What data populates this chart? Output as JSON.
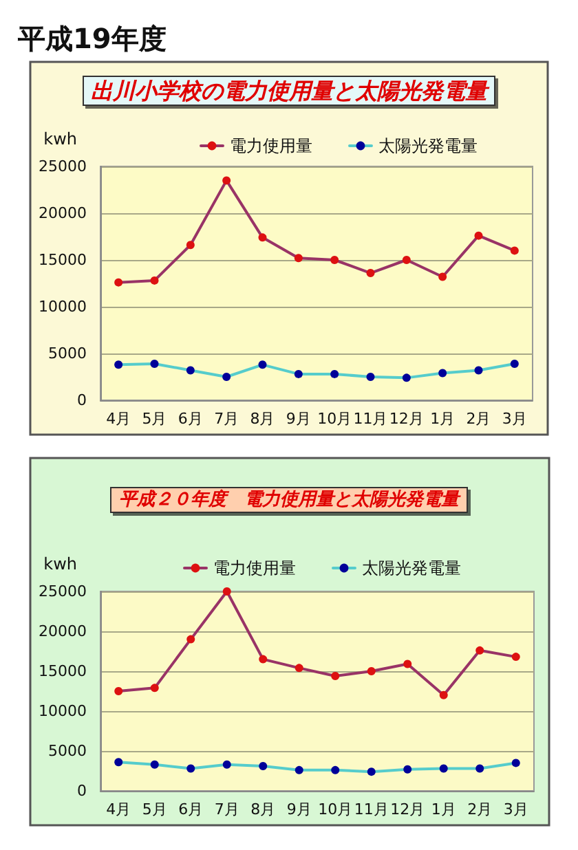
{
  "chart_data": [
    {
      "type": "line",
      "title": "出川小学校の電力使用量と太陽光発電量",
      "annotations": [
        "平成19年度"
      ],
      "ylabel": "kwh",
      "categories": [
        "4月",
        "5月",
        "6月",
        "7月",
        "8月",
        "9月",
        "10月",
        "11月",
        "12月",
        "1月",
        "2月",
        "3月"
      ],
      "series": [
        {
          "name": "電力使用量",
          "color": "#993366",
          "colors": [
            "#dd1111",
            "#dd1111",
            "#dd1111",
            "#dd1111",
            "#dd1111",
            "#dd1111",
            "#dd1111",
            "#dd1111",
            "#dd1111",
            "#dd1111",
            "#dd1111",
            "#dd1111"
          ],
          "values": [
            12600,
            12800,
            16600,
            23500,
            17400,
            15200,
            15000,
            13600,
            15000,
            13200,
            17600,
            16000
          ]
        },
        {
          "name": "太陽光発電量",
          "color": "#55cccc",
          "colors": [
            "#000099",
            "#000099",
            "#000099",
            "#000099",
            "#000099",
            "#000099",
            "#000099",
            "#000099",
            "#000099",
            "#000099",
            "#000099",
            "#000099"
          ],
          "values": [
            3800,
            3900,
            3200,
            2500,
            3800,
            2800,
            2800,
            2500,
            2400,
            2900,
            3200,
            3900
          ]
        }
      ],
      "ylim": [
        0,
        25000
      ],
      "yticks": [
        0,
        5000,
        10000,
        15000,
        20000,
        25000
      ],
      "grid": "y",
      "legend": "top",
      "marker": "circle",
      "line_style": "solid"
    },
    {
      "type": "line",
      "title": "平成２０年度　電力使用量と太陽光発電量",
      "ylabel": "kwh",
      "categories": [
        "4月",
        "5月",
        "6月",
        "7月",
        "8月",
        "9月",
        "10月",
        "11月",
        "12月",
        "1月",
        "2月",
        "3月"
      ],
      "series": [
        {
          "name": "電力使用量",
          "color": "#993366",
          "colors": [
            "#dd1111",
            "#dd1111",
            "#dd1111",
            "#dd1111",
            "#dd1111",
            "#dd1111",
            "#dd1111",
            "#dd1111",
            "#dd1111",
            "#dd1111",
            "#dd1111",
            "#dd1111"
          ],
          "values": [
            12500,
            12900,
            19000,
            25000,
            16500,
            15400,
            14400,
            15000,
            15900,
            12000,
            17600,
            16800
          ]
        },
        {
          "name": "太陽光発電量",
          "color": "#55cccc",
          "colors": [
            "#000099",
            "#000099",
            "#000099",
            "#000099",
            "#000099",
            "#000099",
            "#000099",
            "#000099",
            "#000099",
            "#000099",
            "#000099",
            "#000099"
          ],
          "values": [
            3600,
            3300,
            2800,
            3300,
            3100,
            2600,
            2600,
            2400,
            2700,
            2800,
            2800,
            3500
          ]
        }
      ],
      "ylim": [
        0,
        25000
      ],
      "yticks": [
        0,
        5000,
        10000,
        15000,
        20000,
        25000
      ],
      "grid": "y",
      "legend": "top",
      "marker": "circle",
      "line_style": "solid"
    }
  ]
}
